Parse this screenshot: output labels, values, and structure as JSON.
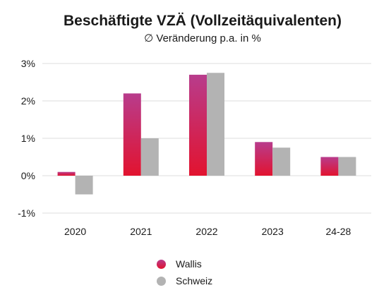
{
  "chart_data": {
    "type": "bar",
    "title": "Beschäftigte VZÄ (Vollzeitäquivalenten)",
    "subtitle": "∅ Veränderung p.a. in %",
    "xlabel": "",
    "ylabel": "",
    "categories": [
      "2020",
      "2021",
      "2022",
      "2023",
      "24-28"
    ],
    "series": [
      {
        "name": "Wallis",
        "values": [
          0.1,
          2.2,
          2.7,
          0.9,
          0.5
        ],
        "color_top": "#b83c8c",
        "color_bottom": "#e2132f"
      },
      {
        "name": "Schweiz",
        "values": [
          -0.5,
          1.0,
          2.75,
          0.75,
          0.5
        ],
        "color": "#b3b3b3"
      }
    ],
    "ylim": [
      -1,
      3
    ],
    "yticks": [
      3,
      2,
      1,
      0,
      -1
    ],
    "ytick_labels": [
      "3%",
      "2%",
      "1%",
      "0%",
      "-1%"
    ],
    "grid": true,
    "legend_position": "bottom"
  }
}
